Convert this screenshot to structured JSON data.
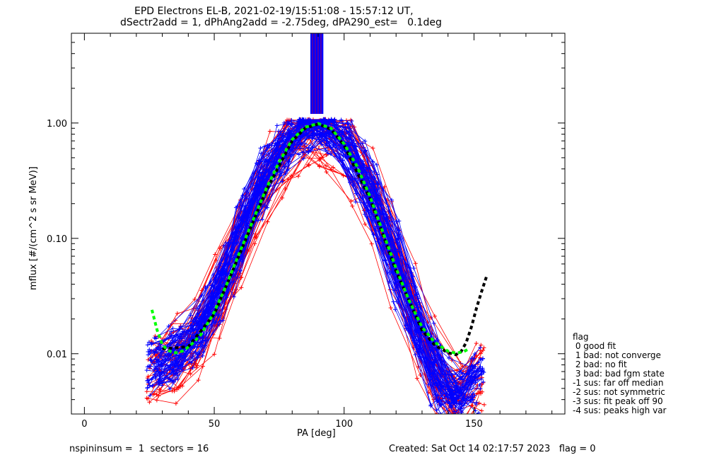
{
  "title_line1": "EPD Electrons EL-B, 2021-02-19/15:51:08 - 15:57:12 UT,",
  "title_line2": "dSectr2add = 1, dPhAng2add = -2.75deg, dPA290_est=   0.1deg",
  "footer_left": "nspininsum =  1  sectors = 16",
  "footer_right": "Created: Sat Oct 14 02:17:57 2023   flag = 0",
  "legend": {
    "title": "flag",
    "items": [
      " 0 good fit",
      " 1 bad: not converge",
      " 2 bad: no fit",
      " 3 bad: bad fgm state",
      "-1 sus: far off median",
      "-2 sus: not symmetric",
      "-3 sus: fit peak off 90",
      "-4 sus: peaks high var"
    ]
  },
  "colors": {
    "series_red": "#ff0000",
    "series_blue": "#0000ff",
    "fit_green": "#00ff00",
    "fit_black": "#000000"
  },
  "chart_data": {
    "type": "line",
    "xlabel": "PA [deg]",
    "ylabel": "mflux [#/(cm^2 s sr MeV)]",
    "xlim": [
      -5,
      185
    ],
    "ylim": [
      0.003,
      6.0
    ],
    "yscale": "log",
    "xticks": [
      0,
      50,
      100,
      150
    ],
    "xtick_labels": [
      "0",
      "50",
      "100",
      "150"
    ],
    "yticks": [
      0.01,
      0.1,
      1.0
    ],
    "ytick_labels": [
      "0.01",
      "0.10",
      "1.00"
    ],
    "grid": false,
    "profile": {
      "pa": [
        26,
        30,
        35,
        40,
        45,
        50,
        55,
        60,
        65,
        70,
        75,
        80,
        85,
        90,
        95,
        100,
        105,
        110,
        115,
        120,
        125,
        130,
        135,
        140,
        145,
        150,
        155
      ],
      "flux": [
        0.0075,
        0.009,
        0.01,
        0.012,
        0.016,
        0.028,
        0.055,
        0.11,
        0.21,
        0.38,
        0.58,
        0.78,
        0.92,
        0.97,
        0.9,
        0.72,
        0.48,
        0.28,
        0.14,
        0.065,
        0.03,
        0.014,
        0.007,
        0.0045,
        0.004,
        0.0055,
        0.008
      ]
    },
    "series": [
      {
        "name": "fit (green)",
        "x": [
          26,
          28,
          30,
          32,
          34,
          36,
          38,
          40,
          42,
          45,
          50,
          55,
          60,
          65,
          70,
          75,
          80,
          85,
          90,
          95,
          100,
          105,
          110,
          115,
          120,
          125,
          130,
          135,
          140,
          143,
          146,
          148
        ],
        "y": [
          0.024,
          0.016,
          0.012,
          0.0108,
          0.0102,
          0.0102,
          0.0106,
          0.0114,
          0.0125,
          0.0148,
          0.023,
          0.041,
          0.078,
          0.145,
          0.27,
          0.46,
          0.72,
          0.92,
          0.99,
          0.9,
          0.66,
          0.42,
          0.23,
          0.112,
          0.055,
          0.029,
          0.017,
          0.0125,
          0.0105,
          0.0101,
          0.0104,
          0.011
        ]
      },
      {
        "name": "fit (black)",
        "x": [
          30,
          40,
          50,
          60,
          70,
          80,
          85,
          90,
          95,
          100,
          110,
          120,
          130,
          135,
          140,
          143,
          145,
          147,
          149,
          151,
          153,
          155
        ],
        "y": [
          0.011,
          0.0115,
          0.022,
          0.075,
          0.26,
          0.7,
          0.9,
          0.98,
          0.88,
          0.64,
          0.22,
          0.052,
          0.016,
          0.0118,
          0.0102,
          0.0098,
          0.0104,
          0.0125,
          0.017,
          0.025,
          0.035,
          0.048
        ]
      }
    ],
    "pa_bands": [
      {
        "name": "peak band (blue)",
        "x_range": [
          87,
          92
        ],
        "y_range": [
          1.2,
          6.0
        ]
      }
    ]
  }
}
